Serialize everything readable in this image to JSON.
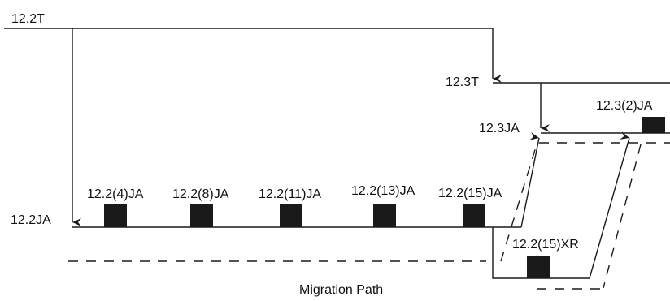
{
  "labels": {
    "train_122t": "12.2T",
    "train_123t": "12.3T",
    "train_123ja": "12.3JA",
    "train_122ja": "12.2JA",
    "release_123_2ja": "12.3(2)JA",
    "release_122_4ja": "12.2(4)JA",
    "release_122_8ja": "12.2(8)JA",
    "release_122_11ja": "12.2(11)JA",
    "release_122_13ja": "12.2(13)JA",
    "release_122_15ja": "12.2(15)JA",
    "release_122_15xr": "12.2(15)XR",
    "migration_path": "Migration Path"
  },
  "colors": {
    "line": "#1a1a1a",
    "marker": "#1a1a1a"
  }
}
